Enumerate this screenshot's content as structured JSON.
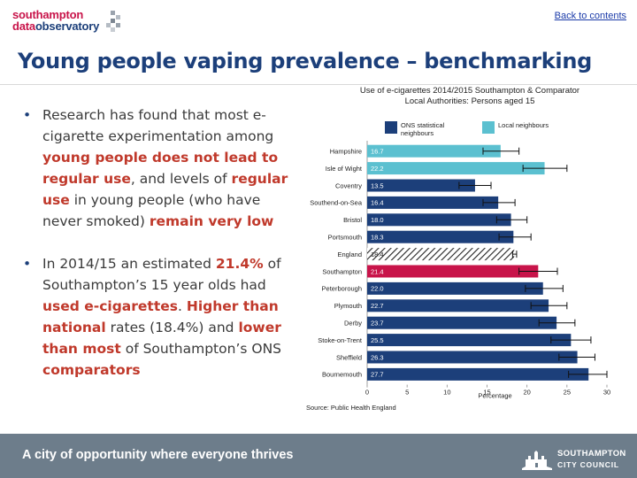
{
  "header": {
    "logo_line1": "southampton",
    "logo_line2_part1": "data",
    "logo_line2_part2": "observatory",
    "back_link": "Back to contents"
  },
  "page_title": "Young people vaping prevalence – benchmarking",
  "bullets": [
    {
      "segments": [
        {
          "text": "Research has found that most e-cigarette experimentation among ",
          "hl": false
        },
        {
          "text": "young people does not lead to regular use",
          "hl": true
        },
        {
          "text": ", and levels of ",
          "hl": false
        },
        {
          "text": "regular use",
          "hl": true
        },
        {
          "text": " in young people (who have never smoked) ",
          "hl": false
        },
        {
          "text": "remain very low",
          "hl": true
        }
      ]
    },
    {
      "segments": [
        {
          "text": "In 2014/15 an estimated ",
          "hl": false
        },
        {
          "text": "21.4%",
          "hl": true
        },
        {
          "text": " of Southampton’s 15 year olds had ",
          "hl": false
        },
        {
          "text": "used e-cigarettes",
          "hl": true
        },
        {
          "text": ". ",
          "hl": false
        },
        {
          "text": "Higher than national",
          "hl": true
        },
        {
          "text": " rates (18.4%) and ",
          "hl": false
        },
        {
          "text": "lower than most",
          "hl": true
        },
        {
          "text": " of Southampton’s ONS ",
          "hl": false
        },
        {
          "text": "comparators",
          "hl": true
        }
      ]
    }
  ],
  "chart_data": {
    "type": "bar",
    "orientation": "horizontal",
    "title": "Use of e-cigarettes 2014/2015 Southampton & Comparator Local Authorities: Persons aged 15",
    "xlabel": "Percentage",
    "xlim": [
      0,
      30
    ],
    "xticks": [
      0,
      5,
      10,
      15,
      20,
      25,
      30
    ],
    "legend": [
      {
        "name": "ONS statistical neighbours",
        "color": "#1c3f7a"
      },
      {
        "name": "Local neighbours",
        "color": "#5bc0d0"
      }
    ],
    "categories": [
      "Hampshire",
      "Isle of Wight",
      "Coventry",
      "Southend-on-Sea",
      "Bristol",
      "Portsmouth",
      "England",
      "Southampton",
      "Peterborough",
      "Plymouth",
      "Derby",
      "Stoke-on-Trent",
      "Sheffield",
      "Bournemouth"
    ],
    "values": [
      16.7,
      22.2,
      13.5,
      16.4,
      18.0,
      18.3,
      18.4,
      21.4,
      22.0,
      22.7,
      23.7,
      25.5,
      26.3,
      27.7
    ],
    "value_labels": [
      "16.7",
      "22.2",
      "13.5",
      "16.4",
      "18.0",
      "18.3",
      "18.4",
      "21.4",
      "22.0",
      "22.7",
      "23.7",
      "25.5",
      "26.3",
      "27.7"
    ],
    "ci_low": [
      14.5,
      19.5,
      11.5,
      14.5,
      16.2,
      16.5,
      18.2,
      19.0,
      19.8,
      20.5,
      21.5,
      23.0,
      24.0,
      25.2
    ],
    "ci_high": [
      19.0,
      25.0,
      15.5,
      18.5,
      20.0,
      20.5,
      18.7,
      23.8,
      24.5,
      25.0,
      26.0,
      28.0,
      28.5,
      30.0
    ],
    "styles": [
      "local",
      "local",
      "ons",
      "ons",
      "ons",
      "ons",
      "england",
      "southampton",
      "ons",
      "ons",
      "ons",
      "ons",
      "ons",
      "ons"
    ],
    "colors": {
      "ons": "#1c3f7a",
      "local": "#5bc0d0",
      "southampton": "#c8144a",
      "england": "#1c3f7a"
    },
    "source": "Source: Public Health England"
  },
  "footer": {
    "tagline": "A city of opportunity where everyone thrives",
    "council_line1": "SOUTHAMPTON",
    "council_line2": "CITY COUNCIL"
  }
}
